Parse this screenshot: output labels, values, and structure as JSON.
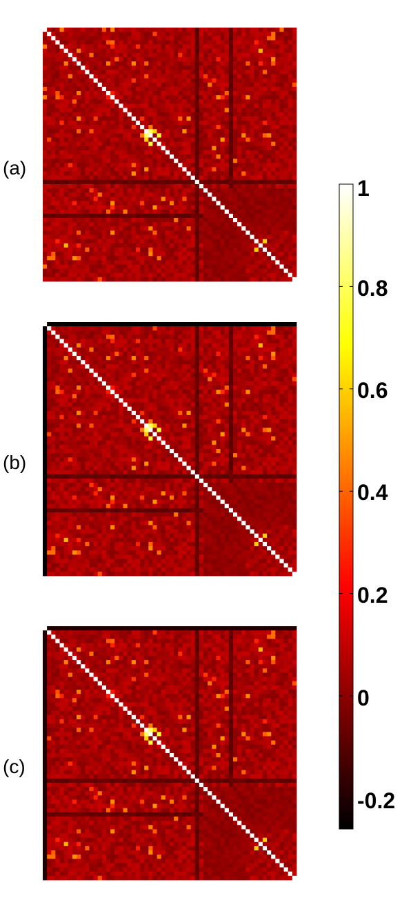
{
  "chart_data": [
    {
      "type": "heatmap",
      "panel_label": "(a)",
      "matrix_size": 60,
      "diagonal_value": 1,
      "typical_offdiagonal_value": 0.05,
      "dark_bands": [
        36,
        44
      ],
      "bright_cells": [
        [
          24,
          25,
          0.8
        ],
        [
          25,
          27,
          0.75
        ],
        [
          24,
          26,
          0.6
        ],
        [
          26,
          24,
          0.6
        ],
        [
          50,
          52,
          0.7
        ],
        [
          52,
          50,
          0.6
        ],
        [
          5,
          51,
          0.55
        ]
      ]
    },
    {
      "type": "heatmap",
      "panel_label": "(b)",
      "matrix_size": 60,
      "diagonal_value": 1,
      "typical_offdiagonal_value": 0.05,
      "dark_bands": [
        36,
        44
      ],
      "border_row_col_value": -0.25,
      "bright_cells": [
        [
          24,
          25,
          0.8
        ],
        [
          25,
          27,
          0.75
        ],
        [
          24,
          26,
          0.6
        ],
        [
          26,
          24,
          0.6
        ],
        [
          50,
          52,
          0.7
        ],
        [
          52,
          50,
          0.6
        ],
        [
          5,
          51,
          0.55
        ]
      ]
    },
    {
      "type": "heatmap",
      "panel_label": "(c)",
      "matrix_size": 60,
      "diagonal_value": 1,
      "typical_offdiagonal_value": 0.05,
      "dark_bands": [
        36,
        44
      ],
      "border_row_col_value": -0.2,
      "bright_cells": [
        [
          24,
          25,
          0.8
        ],
        [
          25,
          27,
          0.75
        ],
        [
          24,
          26,
          0.6
        ],
        [
          26,
          24,
          0.6
        ],
        [
          50,
          52,
          0.7
        ],
        [
          52,
          50,
          0.6
        ],
        [
          5,
          51,
          0.55
        ]
      ]
    }
  ],
  "colorbar": {
    "colormap": "hot",
    "range": [
      -0.26,
      1
    ],
    "ticks": [
      "1",
      "0.8",
      "0.6",
      "0.4",
      "0.2",
      "0",
      "-0.2"
    ],
    "tick_values": [
      1,
      0.8,
      0.6,
      0.4,
      0.2,
      0,
      -0.2
    ]
  }
}
